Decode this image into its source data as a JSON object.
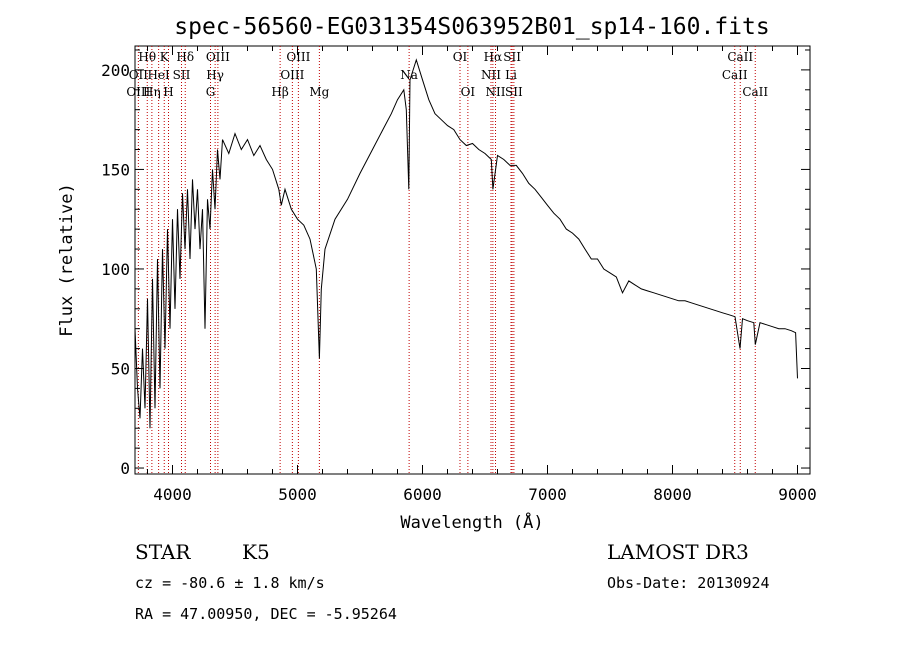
{
  "chart_data": {
    "type": "line",
    "title": "spec-56560-EG031354S063952B01_sp14-160.fits",
    "xlabel": "Wavelength (Å)",
    "ylabel": "Flux (relative)",
    "xlim": [
      3700,
      9100
    ],
    "ylim": [
      -3,
      212
    ],
    "xticks": [
      4000,
      5000,
      6000,
      7000,
      8000,
      9000
    ],
    "yticks": [
      0,
      50,
      100,
      150,
      200
    ],
    "grid": false,
    "series": [
      {
        "values": [
          [
            3700,
            70
          ],
          [
            3720,
            40
          ],
          [
            3740,
            25
          ],
          [
            3760,
            60
          ],
          [
            3780,
            30
          ],
          [
            3800,
            85
          ],
          [
            3820,
            20
          ],
          [
            3840,
            95
          ],
          [
            3860,
            30
          ],
          [
            3880,
            105
          ],
          [
            3900,
            40
          ],
          [
            3920,
            110
          ],
          [
            3940,
            60
          ],
          [
            3960,
            120
          ],
          [
            3980,
            70
          ],
          [
            4000,
            125
          ],
          [
            4020,
            80
          ],
          [
            4040,
            130
          ],
          [
            4060,
            95
          ],
          [
            4080,
            138
          ],
          [
            4100,
            110
          ],
          [
            4120,
            140
          ],
          [
            4140,
            105
          ],
          [
            4160,
            145
          ],
          [
            4180,
            120
          ],
          [
            4200,
            140
          ],
          [
            4220,
            110
          ],
          [
            4240,
            130
          ],
          [
            4260,
            70
          ],
          [
            4280,
            135
          ],
          [
            4300,
            120
          ],
          [
            4320,
            150
          ],
          [
            4340,
            130
          ],
          [
            4360,
            160
          ],
          [
            4380,
            145
          ],
          [
            4400,
            165
          ],
          [
            4450,
            158
          ],
          [
            4500,
            168
          ],
          [
            4550,
            160
          ],
          [
            4600,
            165
          ],
          [
            4650,
            157
          ],
          [
            4700,
            162
          ],
          [
            4750,
            155
          ],
          [
            4800,
            150
          ],
          [
            4850,
            140
          ],
          [
            4870,
            132
          ],
          [
            4900,
            140
          ],
          [
            4950,
            130
          ],
          [
            5000,
            125
          ],
          [
            5050,
            122
          ],
          [
            5100,
            115
          ],
          [
            5150,
            100
          ],
          [
            5175,
            55
          ],
          [
            5190,
            90
          ],
          [
            5220,
            110
          ],
          [
            5300,
            125
          ],
          [
            5400,
            135
          ],
          [
            5500,
            148
          ],
          [
            5600,
            160
          ],
          [
            5700,
            172
          ],
          [
            5750,
            178
          ],
          [
            5800,
            185
          ],
          [
            5850,
            190
          ],
          [
            5870,
            180
          ],
          [
            5890,
            140
          ],
          [
            5900,
            195
          ],
          [
            5950,
            205
          ],
          [
            6000,
            195
          ],
          [
            6050,
            185
          ],
          [
            6100,
            178
          ],
          [
            6150,
            175
          ],
          [
            6200,
            172
          ],
          [
            6250,
            170
          ],
          [
            6300,
            165
          ],
          [
            6350,
            162
          ],
          [
            6400,
            163
          ],
          [
            6450,
            160
          ],
          [
            6500,
            158
          ],
          [
            6550,
            155
          ],
          [
            6563,
            140
          ],
          [
            6600,
            157
          ],
          [
            6650,
            155
          ],
          [
            6700,
            152
          ],
          [
            6750,
            152
          ],
          [
            6800,
            148
          ],
          [
            6850,
            143
          ],
          [
            6900,
            140
          ],
          [
            6950,
            136
          ],
          [
            7000,
            132
          ],
          [
            7050,
            128
          ],
          [
            7100,
            125
          ],
          [
            7150,
            120
          ],
          [
            7200,
            118
          ],
          [
            7250,
            115
          ],
          [
            7300,
            110
          ],
          [
            7350,
            105
          ],
          [
            7400,
            105
          ],
          [
            7450,
            100
          ],
          [
            7500,
            98
          ],
          [
            7550,
            96
          ],
          [
            7600,
            88
          ],
          [
            7650,
            94
          ],
          [
            7700,
            92
          ],
          [
            7750,
            90
          ],
          [
            7800,
            89
          ],
          [
            7850,
            88
          ],
          [
            7900,
            87
          ],
          [
            7950,
            86
          ],
          [
            8000,
            85
          ],
          [
            8050,
            84
          ],
          [
            8100,
            84
          ],
          [
            8150,
            83
          ],
          [
            8200,
            82
          ],
          [
            8250,
            81
          ],
          [
            8300,
            80
          ],
          [
            8350,
            79
          ],
          [
            8400,
            78
          ],
          [
            8450,
            77
          ],
          [
            8500,
            76
          ],
          [
            8540,
            60
          ],
          [
            8560,
            75
          ],
          [
            8600,
            74
          ],
          [
            8650,
            73
          ],
          [
            8662,
            62
          ],
          [
            8700,
            73
          ],
          [
            8750,
            72
          ],
          [
            8800,
            71
          ],
          [
            8850,
            70
          ],
          [
            8900,
            70
          ],
          [
            8950,
            69
          ],
          [
            8985,
            68
          ],
          [
            9000,
            45
          ]
        ]
      }
    ],
    "annotations": [
      {
        "label": "Hθ",
        "x": 3798,
        "row": 0
      },
      {
        "label": "OII",
        "x": 3727,
        "row": 1
      },
      {
        "label": "OIII",
        "x": 3727,
        "row": 2
      },
      {
        "label": "K",
        "x": 3934,
        "row": 0
      },
      {
        "label": "HeI",
        "x": 3889,
        "row": 1
      },
      {
        "label": "Hη",
        "x": 3835,
        "row": 2
      },
      {
        "label": "H",
        "x": 3968,
        "row": 2
      },
      {
        "label": "Hδ",
        "x": 4102,
        "row": 0
      },
      {
        "label": "SII",
        "x": 4072,
        "row": 1
      },
      {
        "label": "OIII",
        "x": 4363,
        "row": 0
      },
      {
        "label": "Hγ",
        "x": 4341,
        "row": 1
      },
      {
        "label": "G",
        "x": 4304,
        "row": 2
      },
      {
        "label": "OIII",
        "x": 5007,
        "row": 0
      },
      {
        "label": "OIII",
        "x": 4959,
        "row": 1
      },
      {
        "label": "Hβ",
        "x": 4861,
        "row": 2
      },
      {
        "label": "Mg",
        "x": 5175,
        "row": 2
      },
      {
        "label": "Na",
        "x": 5893,
        "row": 1
      },
      {
        "label": "OI",
        "x": 6300,
        "row": 0
      },
      {
        "label": "OI",
        "x": 6363,
        "row": 2
      },
      {
        "label": "Hα",
        "x": 6563,
        "row": 0
      },
      {
        "label": "SII",
        "x": 6717,
        "row": 0
      },
      {
        "label": "NII",
        "x": 6548,
        "row": 1
      },
      {
        "label": "Li",
        "x": 6708,
        "row": 1
      },
      {
        "label": "NII",
        "x": 6584,
        "row": 2
      },
      {
        "label": "SII",
        "x": 6731,
        "row": 2
      },
      {
        "label": "CaII",
        "x": 8542,
        "row": 0
      },
      {
        "label": "CaII",
        "x": 8498,
        "row": 1
      },
      {
        "label": "CaII",
        "x": 8662,
        "row": 2
      }
    ]
  },
  "info": {
    "object_class": "STAR",
    "subclass": "K5",
    "cz": "cz = -80.6 ± 1.8 km/s",
    "coords": "RA =  47.00950, DEC =  -5.95264",
    "survey": "LAMOST DR3",
    "obs_date": "Obs-Date: 20130924"
  }
}
